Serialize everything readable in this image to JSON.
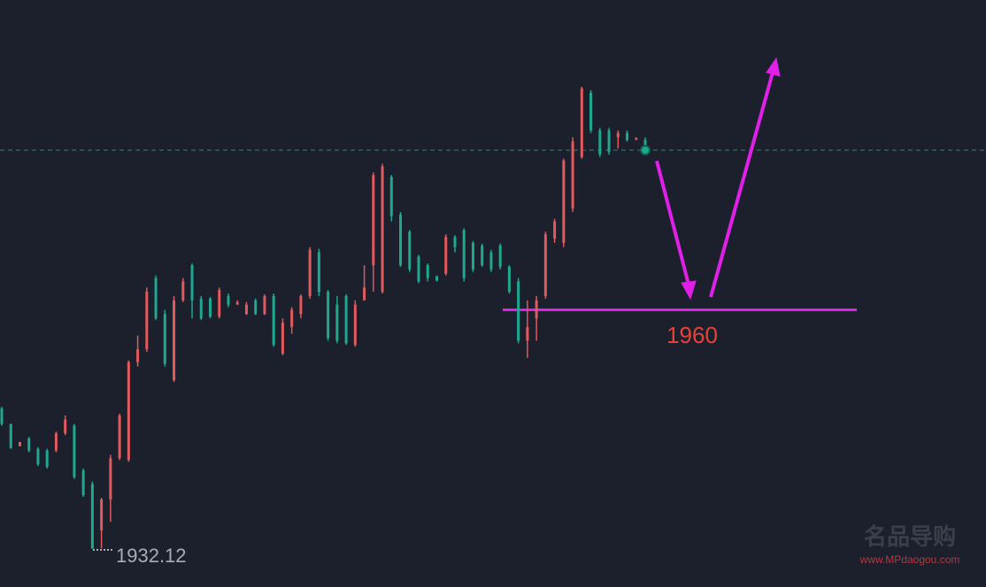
{
  "chart_data": {
    "type": "candlestick",
    "open": [
      1948.5,
      1946.7,
      1944.1,
      1945.0,
      1943.8,
      1943.6,
      1943.6,
      1945.6,
      1946.5,
      1941.3,
      1939.7,
      1934.3,
      1937.9,
      1942.7,
      1942.5,
      1953.9,
      1955.4,
      1963.7,
      1959.5,
      1951.8,
      1961.1,
      1965.2,
      1961.3,
      1961.3,
      1959.2,
      1961.6,
      1960.6,
      1959.5,
      1961.1,
      1959.5,
      1961.6,
      1954.9,
      1958.0,
      1959.5,
      1961.6,
      1966.7,
      1962.1,
      1960.6,
      1961.6,
      1955.9,
      1961.1,
      1965.2,
      1962.1,
      1975.5,
      1971.1,
      1969.1,
      1966.2,
      1965.2,
      1963.9,
      1964.2,
      1968.5,
      1969.3,
      1967.8,
      1967.5,
      1966.7,
      1967.5,
      1965.0,
      1963.3,
      1956.4,
      1959.0,
      1961.6,
      1968.3,
      1967.8,
      1971.8,
      1977.8,
      1985.3,
      1980.9,
      1980.9,
      1980.1,
      1980.6,
      1979.8,
      1979.8
    ],
    "high": [
      1948.7,
      1946.7,
      1944.6,
      1945.2,
      1944.0,
      1943.8,
      1945.8,
      1947.7,
      1946.7,
      1941.5,
      1940.0,
      1938.1,
      1943.1,
      1947.9,
      1954.1,
      1957.0,
      1962.6,
      1964.0,
      1960.0,
      1961.6,
      1963.7,
      1965.4,
      1961.6,
      1961.5,
      1962.6,
      1961.9,
      1961.1,
      1960.9,
      1961.3,
      1961.8,
      1961.9,
      1959.0,
      1960.3,
      1961.8,
      1967.3,
      1967.1,
      1962.3,
      1961.6,
      1961.8,
      1961.1,
      1965.2,
      1976.0,
      1977.0,
      1975.7,
      1971.4,
      1969.3,
      1966.4,
      1965.4,
      1964.0,
      1968.8,
      1968.7,
      1969.5,
      1968.0,
      1967.7,
      1967.0,
      1967.7,
      1965.2,
      1963.7,
      1961.1,
      1961.6,
      1969.1,
      1970.6,
      1977.6,
      1980.1,
      1986.0,
      1985.6,
      1981.2,
      1981.2,
      1980.9,
      1980.9,
      1980.1,
      1980.1
    ],
    "low": [
      1946.5,
      1943.8,
      1944.1,
      1943.4,
      1941.8,
      1941.5,
      1943.4,
      1945.4,
      1940.3,
      1938.2,
      1932.12,
      1932.2,
      1935.3,
      1942.5,
      1942.3,
      1953.4,
      1955.1,
      1958.8,
      1953.4,
      1951.6,
      1960.9,
      1959.0,
      1958.8,
      1959.0,
      1959.0,
      1960.3,
      1960.6,
      1959.4,
      1959.4,
      1959.4,
      1955.7,
      1954.7,
      1957.2,
      1959.0,
      1961.3,
      1961.6,
      1956.4,
      1956.1,
      1955.9,
      1955.7,
      1961.1,
      1962.1,
      1961.9,
      1970.3,
      1965.0,
      1964.4,
      1963.1,
      1963.3,
      1963.3,
      1964.0,
      1966.7,
      1963.3,
      1964.4,
      1965.0,
      1964.4,
      1964.7,
      1961.9,
      1956.1,
      1954.4,
      1956.4,
      1961.3,
      1967.8,
      1967.3,
      1971.4,
      1977.6,
      1980.6,
      1977.8,
      1978.1,
      1978.8,
      1979.6,
      1979.8,
      1978.4
    ],
    "close": [
      1946.7,
      1943.9,
      1944.6,
      1943.6,
      1942.0,
      1941.7,
      1945.6,
      1947.2,
      1940.5,
      1938.4,
      1932.2,
      1937.9,
      1942.7,
      1947.7,
      1953.9,
      1955.4,
      1962.1,
      1959.0,
      1953.7,
      1961.1,
      1963.3,
      1961.1,
      1959.0,
      1959.2,
      1962.3,
      1960.6,
      1960.9,
      1960.6,
      1959.5,
      1961.6,
      1955.9,
      1958.5,
      1960.0,
      1961.6,
      1967.0,
      1962.1,
      1956.7,
      1956.4,
      1956.1,
      1960.6,
      1962.6,
      1975.7,
      1976.7,
      1970.9,
      1965.2,
      1964.7,
      1963.3,
      1963.7,
      1963.4,
      1968.5,
      1967.3,
      1963.7,
      1964.7,
      1965.2,
      1964.7,
      1965.0,
      1962.1,
      1956.4,
      1958.0,
      1961.1,
      1968.8,
      1970.3,
      1977.4,
      1979.6,
      1985.8,
      1980.9,
      1978.1,
      1978.4,
      1980.6,
      1979.8,
      1980.0,
      1978.6
    ],
    "up_color": "#e05a5e",
    "down_color": "#1fa890",
    "ylim": [
      1927.7,
      1996.1
    ],
    "last_price": 1978.6,
    "support_level": 1960,
    "watermark_logo": "名品导购",
    "watermark": "www.MPdaogou.com"
  }
}
